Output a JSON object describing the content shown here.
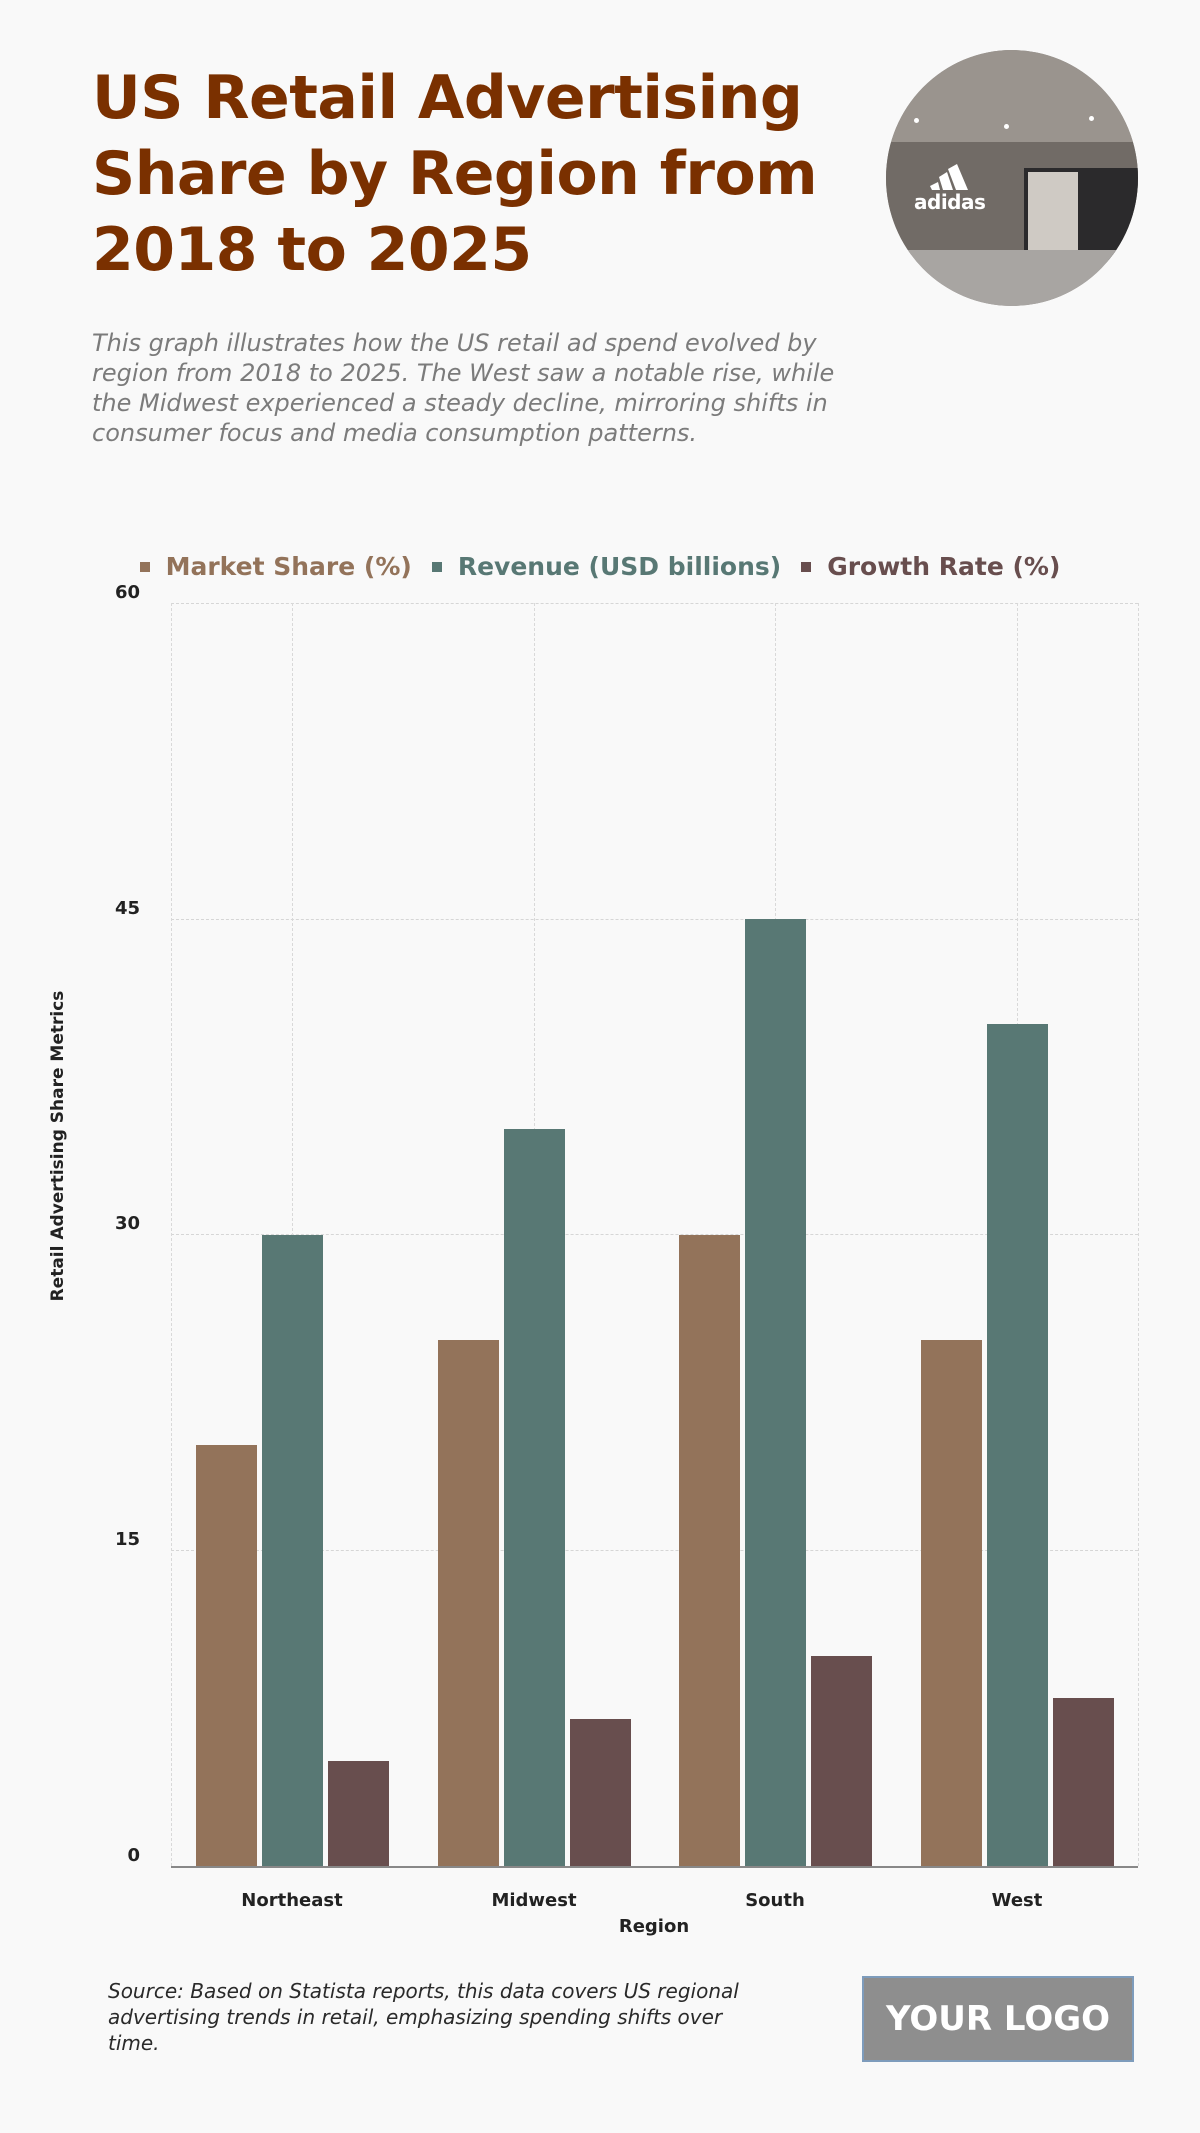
{
  "header": {
    "title": "US Retail Advertising Share by Region from 2018 to 2025",
    "description": "This graph illustrates how the US retail ad spend evolved by region from 2018 to 2025. The West saw a notable rise, while the Midwest experienced a steady decline, mirroring shifts in consumer focus and media consumption patterns.",
    "hero_image": {
      "alt": "adidas store in a shopping mall",
      "logo_text": "adidas"
    }
  },
  "legend": [
    {
      "label": "Market Share (%)",
      "color": "#93735a"
    },
    {
      "label": "Revenue (USD billions)",
      "color": "#587874"
    },
    {
      "label": "Growth Rate (%)",
      "color": "#684e4e"
    }
  ],
  "axes": {
    "y_ticks": [
      "60",
      "45",
      "30",
      "15",
      "0"
    ],
    "ylabel": "Retail Advertising Share Metrics",
    "xlabel": "Region",
    "categories": [
      "Northeast",
      "Midwest",
      "South",
      "West"
    ]
  },
  "footer": {
    "source": "Source: Based on Statista reports, this data covers US regional advertising trends in retail, emphasizing spending shifts over time.",
    "logo_text": "YOUR LOGO"
  },
  "chart_data": {
    "type": "bar",
    "title": "US Retail Advertising Share by Region from 2018 to 2025",
    "categories": [
      "Northeast",
      "Midwest",
      "South",
      "West"
    ],
    "series": [
      {
        "name": "Market Share (%)",
        "color": "#93735a",
        "values": [
          20,
          25,
          30,
          25
        ]
      },
      {
        "name": "Revenue (USD billions)",
        "color": "#587874",
        "values": [
          30,
          35,
          45,
          40
        ]
      },
      {
        "name": "Growth Rate (%)",
        "color": "#684e4e",
        "values": [
          5,
          7,
          10,
          8
        ]
      }
    ],
    "xlabel": "Region",
    "ylabel": "Retail Advertising Share Metrics",
    "ylim": [
      0,
      60
    ],
    "yticks": [
      0,
      15,
      30,
      45,
      60
    ],
    "grid": true,
    "legend_position": "top"
  }
}
